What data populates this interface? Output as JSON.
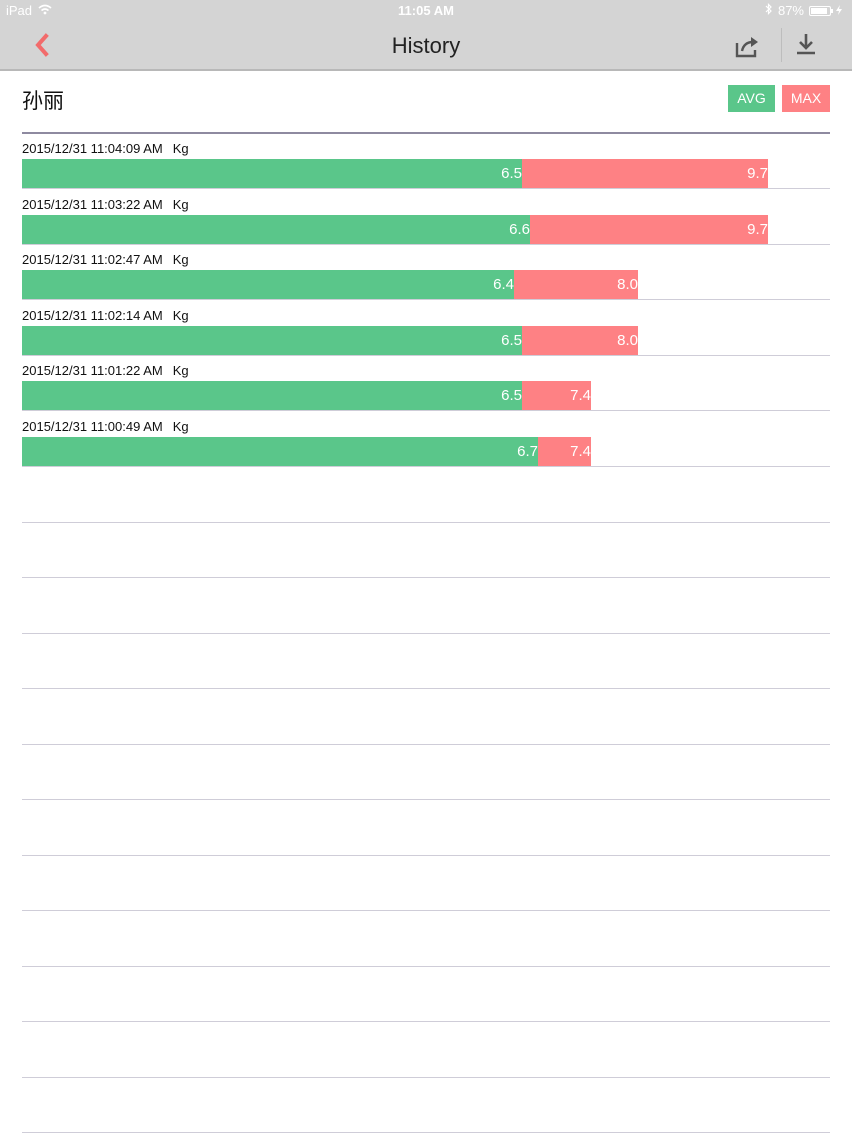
{
  "status_bar": {
    "device": "iPad",
    "time": "11:05 AM",
    "battery_text": "87%",
    "battery_level": 0.87
  },
  "nav": {
    "title": "History",
    "back_icon": "chevron-left-icon",
    "share_icon": "share-icon",
    "download_icon": "download-icon"
  },
  "person": {
    "name": "孙丽"
  },
  "legend": {
    "avg_label": "AVG",
    "max_label": "MAX"
  },
  "colors": {
    "avg": "#5ac68a",
    "max": "#fe8184",
    "accent_back": "#f26b6b"
  },
  "chart_data": {
    "type": "bar",
    "unit": "Kg",
    "series": [
      {
        "name": "AVG",
        "values": [
          6.5,
          6.6,
          6.4,
          6.5,
          6.5,
          6.7
        ]
      },
      {
        "name": "MAX",
        "values": [
          9.7,
          9.7,
          8.0,
          8.0,
          7.4,
          7.4
        ]
      }
    ],
    "categories": [
      "2015/12/31 11:04:09 AM",
      "2015/12/31 11:03:22 AM",
      "2015/12/31 11:02:47 AM",
      "2015/12/31 11:02:14 AM",
      "2015/12/31 11:01:22 AM",
      "2015/12/31 11:00:49 AM"
    ],
    "xlim": [
      0,
      10.5
    ],
    "grid": true
  },
  "records": [
    {
      "timestamp": "2015/12/31 11:04:09 AM",
      "unit": "Kg",
      "avg": "6.5",
      "max": "9.7"
    },
    {
      "timestamp": "2015/12/31 11:03:22 AM",
      "unit": "Kg",
      "avg": "6.6",
      "max": "9.7"
    },
    {
      "timestamp": "2015/12/31 11:02:47 AM",
      "unit": "Kg",
      "avg": "6.4",
      "max": "8.0"
    },
    {
      "timestamp": "2015/12/31 11:02:14 AM",
      "unit": "Kg",
      "avg": "6.5",
      "max": "8.0"
    },
    {
      "timestamp": "2015/12/31 11:01:22 AM",
      "unit": "Kg",
      "avg": "6.5",
      "max": "7.4"
    },
    {
      "timestamp": "2015/12/31 11:00:49 AM",
      "unit": "Kg",
      "avg": "6.7",
      "max": "7.4"
    }
  ]
}
